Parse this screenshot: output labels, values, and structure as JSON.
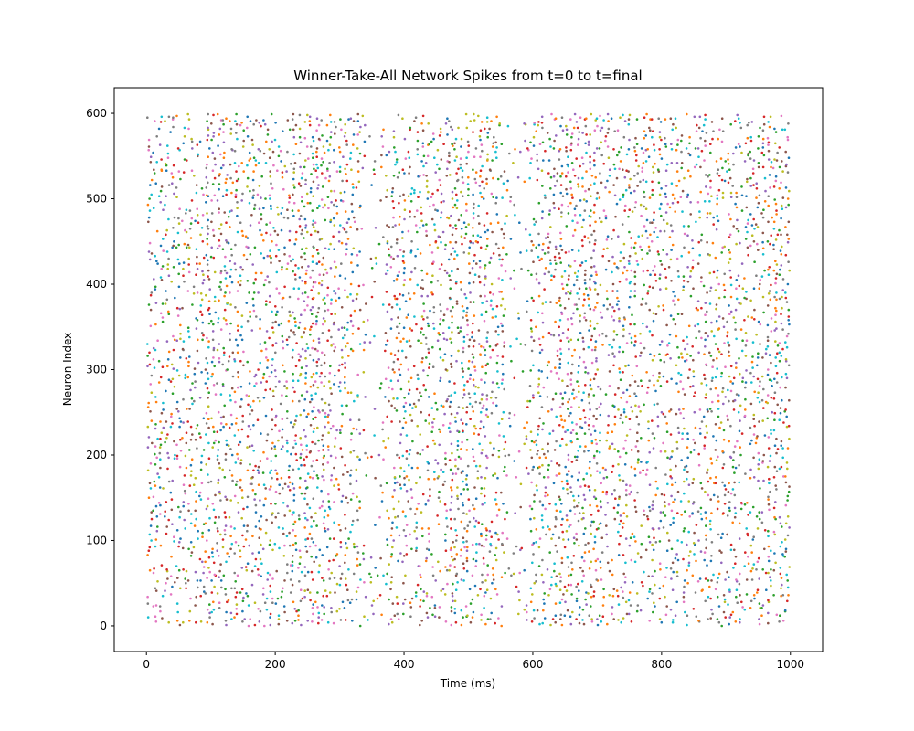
{
  "chart_data": {
    "type": "scatter",
    "title": "Winner-Take-All Network Spikes from t=0 to t=final",
    "xlabel": "Time (ms)",
    "ylabel": "Neuron Index",
    "xlim": [
      -50,
      1050
    ],
    "ylim": [
      -30,
      630
    ],
    "xticks": [
      0,
      200,
      400,
      600,
      800,
      1000
    ],
    "yticks": [
      0,
      100,
      200,
      300,
      400,
      500,
      600
    ],
    "grid": false,
    "legend": "none",
    "marker": "dot",
    "series_count": 10,
    "neuron_range": [
      0,
      599
    ],
    "time_range": [
      0,
      1000
    ],
    "colors": [
      "#1f77b4",
      "#ff7f0e",
      "#2ca02c",
      "#d62728",
      "#9467bd",
      "#8c564b",
      "#e377c2",
      "#7f7f7f",
      "#bcbd22",
      "#17becf"
    ],
    "spike_pattern": {
      "neuron_step": 6,
      "time_step": 9,
      "fire_probability": 0.5,
      "dense_bands_ms": [
        [
          90,
          130
        ],
        [
          230,
          290
        ],
        [
          470,
          520
        ],
        [
          640,
          700
        ],
        [
          960,
          1000
        ]
      ],
      "sparse_bands_ms": [
        [
          335,
          365
        ],
        [
          555,
          590
        ]
      ]
    }
  }
}
